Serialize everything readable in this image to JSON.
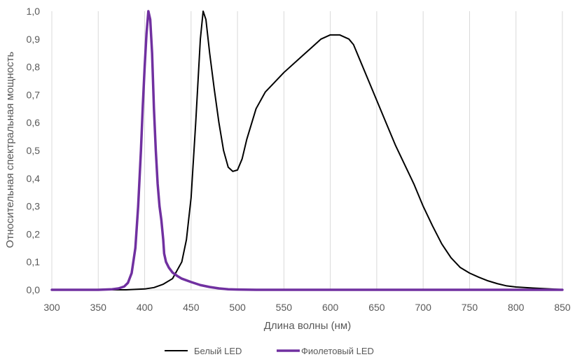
{
  "chart_data": {
    "type": "line",
    "xlabel": "Длина волны (нм)",
    "ylabel": "Относительная спектральная мощность",
    "xlim": [
      300,
      850
    ],
    "ylim": [
      0,
      1
    ],
    "x_ticks": [
      "300",
      "350",
      "400",
      "450",
      "500",
      "550",
      "600",
      "650",
      "700",
      "750",
      "800",
      "850"
    ],
    "y_ticks": [
      "0,0",
      "0,1",
      "0,2",
      "0,3",
      "0,4",
      "0,5",
      "0,6",
      "0,7",
      "0,8",
      "0,9",
      "1,0"
    ],
    "grid": "vertical",
    "legend_position": "bottom",
    "series": [
      {
        "name": "Белый LED",
        "color": "#000000",
        "points": [
          [
            300,
            0
          ],
          [
            380,
            0
          ],
          [
            400,
            0.003
          ],
          [
            410,
            0.008
          ],
          [
            420,
            0.02
          ],
          [
            430,
            0.04
          ],
          [
            440,
            0.1
          ],
          [
            445,
            0.18
          ],
          [
            450,
            0.33
          ],
          [
            455,
            0.6
          ],
          [
            460,
            0.9
          ],
          [
            463,
            1.0
          ],
          [
            466,
            0.97
          ],
          [
            470,
            0.85
          ],
          [
            475,
            0.72
          ],
          [
            480,
            0.6
          ],
          [
            485,
            0.5
          ],
          [
            490,
            0.44
          ],
          [
            495,
            0.425
          ],
          [
            500,
            0.43
          ],
          [
            505,
            0.47
          ],
          [
            510,
            0.54
          ],
          [
            520,
            0.65
          ],
          [
            530,
            0.71
          ],
          [
            550,
            0.78
          ],
          [
            570,
            0.84
          ],
          [
            580,
            0.87
          ],
          [
            590,
            0.9
          ],
          [
            600,
            0.915
          ],
          [
            610,
            0.915
          ],
          [
            620,
            0.9
          ],
          [
            625,
            0.88
          ],
          [
            630,
            0.84
          ],
          [
            640,
            0.76
          ],
          [
            650,
            0.68
          ],
          [
            660,
            0.6
          ],
          [
            670,
            0.52
          ],
          [
            680,
            0.45
          ],
          [
            690,
            0.38
          ],
          [
            700,
            0.3
          ],
          [
            710,
            0.23
          ],
          [
            720,
            0.165
          ],
          [
            730,
            0.115
          ],
          [
            740,
            0.08
          ],
          [
            750,
            0.06
          ],
          [
            760,
            0.045
          ],
          [
            770,
            0.032
          ],
          [
            780,
            0.022
          ],
          [
            790,
            0.014
          ],
          [
            800,
            0.01
          ],
          [
            820,
            0.006
          ],
          [
            850,
            0.001
          ]
        ]
      },
      {
        "name": "Фиолетовый LED",
        "color": "#7030a0",
        "points": [
          [
            300,
            0
          ],
          [
            350,
            0
          ],
          [
            365,
            0.002
          ],
          [
            372,
            0.005
          ],
          [
            378,
            0.012
          ],
          [
            382,
            0.025
          ],
          [
            386,
            0.06
          ],
          [
            390,
            0.15
          ],
          [
            393,
            0.3
          ],
          [
            396,
            0.5
          ],
          [
            398,
            0.66
          ],
          [
            400,
            0.8
          ],
          [
            402,
            0.92
          ],
          [
            404,
            1.0
          ],
          [
            406,
            0.97
          ],
          [
            408,
            0.85
          ],
          [
            410,
            0.65
          ],
          [
            412,
            0.5
          ],
          [
            414,
            0.38
          ],
          [
            416,
            0.3
          ],
          [
            418,
            0.25
          ],
          [
            420,
            0.18
          ],
          [
            421,
            0.13
          ],
          [
            423,
            0.1
          ],
          [
            426,
            0.08
          ],
          [
            430,
            0.062
          ],
          [
            435,
            0.05
          ],
          [
            440,
            0.04
          ],
          [
            450,
            0.028
          ],
          [
            460,
            0.017
          ],
          [
            470,
            0.01
          ],
          [
            480,
            0.005
          ],
          [
            490,
            0.002
          ],
          [
            500,
            0.001
          ],
          [
            520,
            0
          ],
          [
            850,
            0
          ]
        ]
      }
    ]
  }
}
